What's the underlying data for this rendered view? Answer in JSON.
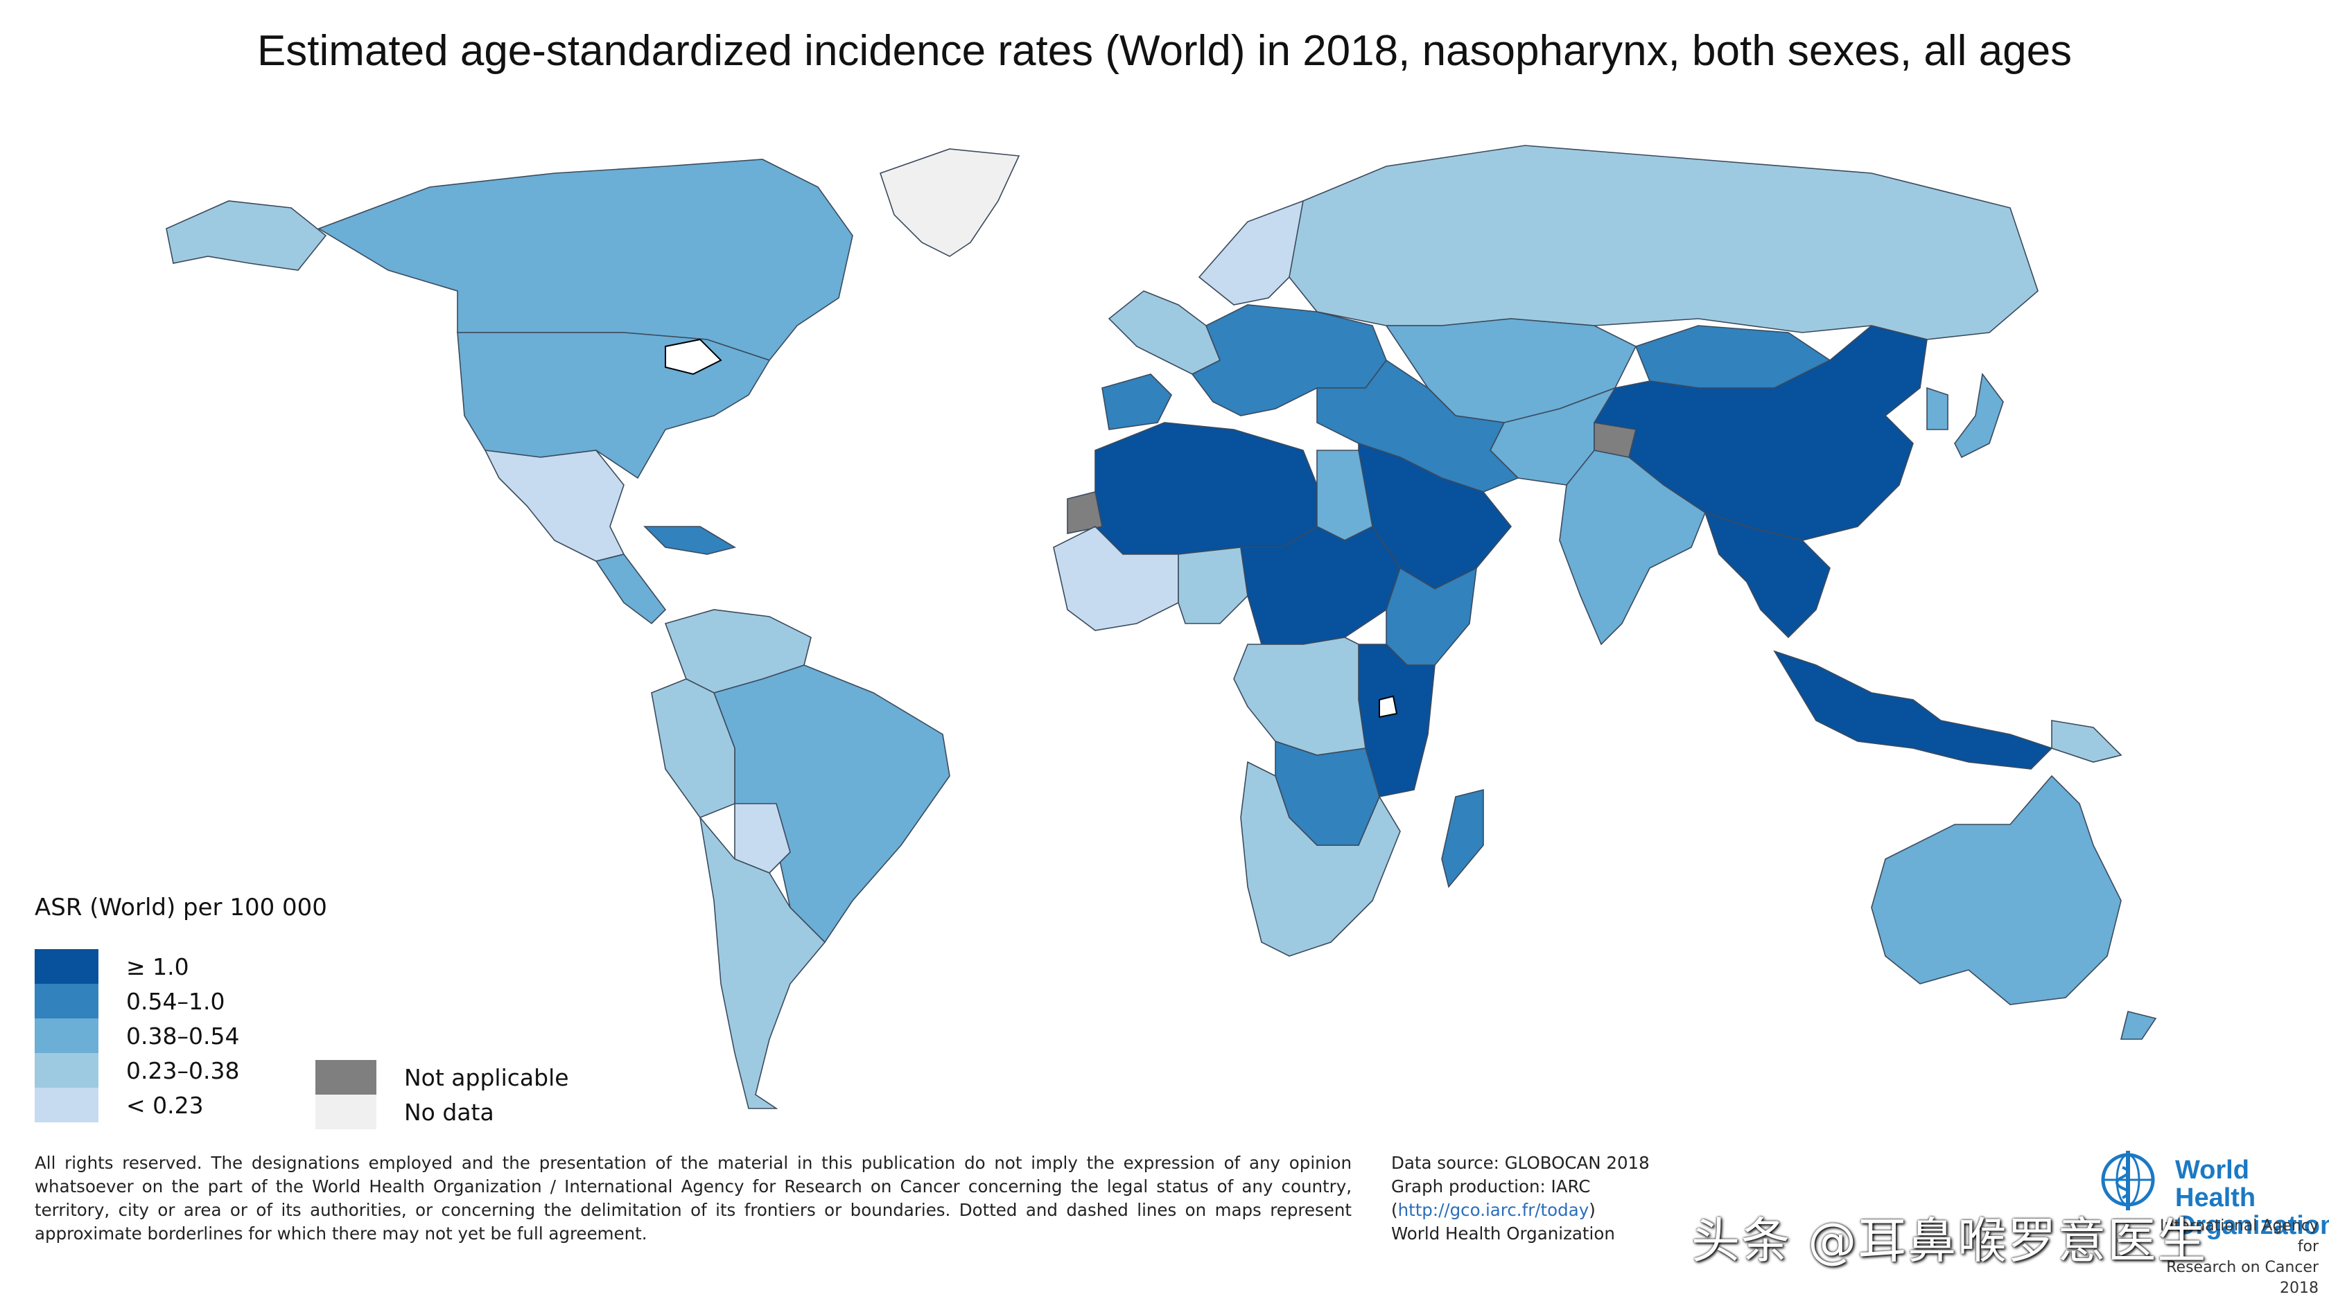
{
  "title": "Estimated age-standardized incidence rates (World) in 2018, nasopharynx, both sexes, all ages",
  "legend": {
    "title": "ASR (World) per 100 000",
    "classes": [
      {
        "label": "≥ 1.0",
        "color": "#08519c"
      },
      {
        "label": "0.54–1.0",
        "color": "#3182bd"
      },
      {
        "label": "0.38–0.54",
        "color": "#6baed6"
      },
      {
        "label": "0.23–0.38",
        "color": "#9ecae1"
      },
      {
        "label": "< 0.23",
        "color": "#c6dbef"
      }
    ],
    "special": [
      {
        "label": "Not applicable",
        "color": "#7f7f7f"
      },
      {
        "label": "No data",
        "color": "#f0f0f0"
      }
    ]
  },
  "regions": [
    {
      "name": "Canada",
      "class": "0.38–0.54"
    },
    {
      "name": "United States",
      "class": "0.38–0.54"
    },
    {
      "name": "Alaska",
      "class": "0.23–0.38"
    },
    {
      "name": "Greenland",
      "class": "No data"
    },
    {
      "name": "Mexico",
      "class": "< 0.23"
    },
    {
      "name": "Central America",
      "class": "0.38–0.54"
    },
    {
      "name": "Caribbean",
      "class": "0.54–1.0"
    },
    {
      "name": "Brazil",
      "class": "0.38–0.54"
    },
    {
      "name": "Colombia / Venezuela",
      "class": "0.23–0.38"
    },
    {
      "name": "Peru / Ecuador",
      "class": "0.23–0.38"
    },
    {
      "name": "Bolivia",
      "class": "< 0.23"
    },
    {
      "name": "Argentina / Chile",
      "class": "0.23–0.38"
    },
    {
      "name": "Western Europe",
      "class": "0.23–0.38"
    },
    {
      "name": "Scandinavia",
      "class": "< 0.23"
    },
    {
      "name": "Iberia",
      "class": "0.54–1.0"
    },
    {
      "name": "Southern / Eastern Europe",
      "class": "0.54–1.0"
    },
    {
      "name": "Russia",
      "class": "0.23–0.38"
    },
    {
      "name": "Kazakhstan / Central Asia",
      "class": "0.38–0.54"
    },
    {
      "name": "Mongolia",
      "class": "0.54–1.0"
    },
    {
      "name": "China",
      "class": "≥ 1.0"
    },
    {
      "name": "Japan",
      "class": "0.38–0.54"
    },
    {
      "name": "Korea",
      "class": "0.38–0.54"
    },
    {
      "name": "South East Asia",
      "class": "≥ 1.0"
    },
    {
      "name": "Indonesia / Malaysia",
      "class": "≥ 1.0"
    },
    {
      "name": "India",
      "class": "0.38–0.54"
    },
    {
      "name": "Pakistan / Afghanistan",
      "class": "0.38–0.54"
    },
    {
      "name": "Kashmir",
      "class": "Not applicable"
    },
    {
      "name": "Turkey / Iran",
      "class": "0.54–1.0"
    },
    {
      "name": "Arabian Peninsula",
      "class": "≥ 1.0"
    },
    {
      "name": "North Africa",
      "class": "≥ 1.0"
    },
    {
      "name": "Western Sahara",
      "class": "Not applicable"
    },
    {
      "name": "Egypt",
      "class": "0.38–0.54"
    },
    {
      "name": "West Africa coast",
      "class": "< 0.23"
    },
    {
      "name": "Nigeria",
      "class": "0.23–0.38"
    },
    {
      "name": "Central Africa / Sudan",
      "class": "≥ 1.0"
    },
    {
      "name": "Ethiopia / Horn",
      "class": "0.54–1.0"
    },
    {
      "name": "East Africa (Kenya / Tanzania)",
      "class": "≥ 1.0"
    },
    {
      "name": "Congo basin",
      "class": "0.23–0.38"
    },
    {
      "name": "Southern Africa",
      "class": "0.23–0.38"
    },
    {
      "name": "Zambia / Malawi",
      "class": "0.54–1.0"
    },
    {
      "name": "Madagascar",
      "class": "0.54–1.0"
    },
    {
      "name": "Australia",
      "class": "0.38–0.54"
    },
    {
      "name": "New Zealand",
      "class": "0.38–0.54"
    },
    {
      "name": "Papua New Guinea",
      "class": "0.23–0.38"
    }
  ],
  "disclaimer": "All rights reserved. The designations employed and the presentation of the material in this publication do not imply the expression of any opinion whatsoever on the part of the World Health Organization / International Agency for Research on Cancer concerning the legal status of any country, territory, city or area or of its authorities, or concerning the delimitation of its frontiers or boundaries. Dotted and dashed lines on maps represent approximate borderlines for which there may not yet be full agreement.",
  "source": {
    "line1": "Data source: GLOBOCAN 2018",
    "line2": "Graph production: IARC",
    "link": "http://gco.iarc.fr/today",
    "line4": "World Health Organization"
  },
  "logo": {
    "name_line1": "World Health",
    "name_line2": "Organization",
    "credit_line1": "International Agency for",
    "credit_line2": "Research on Cancer 2018"
  },
  "watermark": "头条 @耳鼻喉罗意医生"
}
